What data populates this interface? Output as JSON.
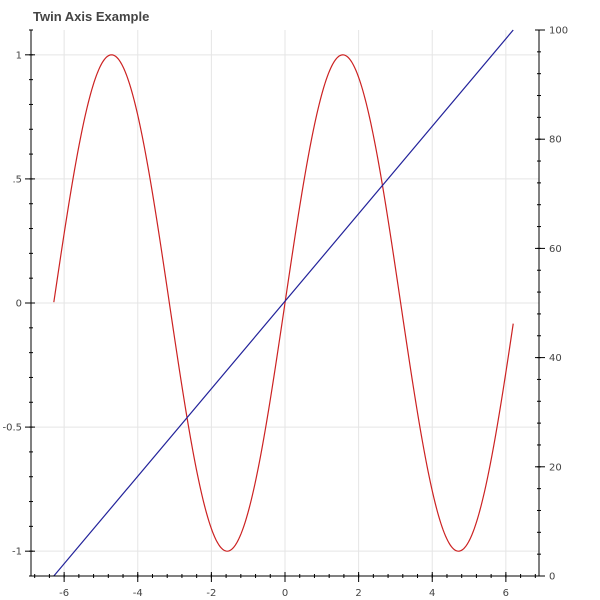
{
  "chart_data": {
    "type": "line",
    "title": "Twin Axis Example",
    "xlabel": "",
    "ylabel": "",
    "xlim": [
      -6.9,
      6.9
    ],
    "ylim": [
      -1.1,
      1.1
    ],
    "y2lim": [
      0,
      100
    ],
    "grid": true,
    "x_ticks": [
      -6,
      -4,
      -2,
      0,
      2,
      4,
      6
    ],
    "y_ticks": [
      -1,
      -0.5,
      0,
      0.5,
      1
    ],
    "y2_ticks": [
      0,
      20,
      40,
      60,
      80,
      100
    ],
    "series": [
      {
        "function": "sin",
        "axis": "left",
        "color": "#cc2222",
        "x_range": [
          -6.28,
          6.2
        ]
      },
      {
        "function": "linear",
        "axis": "right",
        "color": "#22229a",
        "points": [
          [
            -6.28,
            0
          ],
          [
            6.2,
            100
          ]
        ]
      }
    ]
  }
}
